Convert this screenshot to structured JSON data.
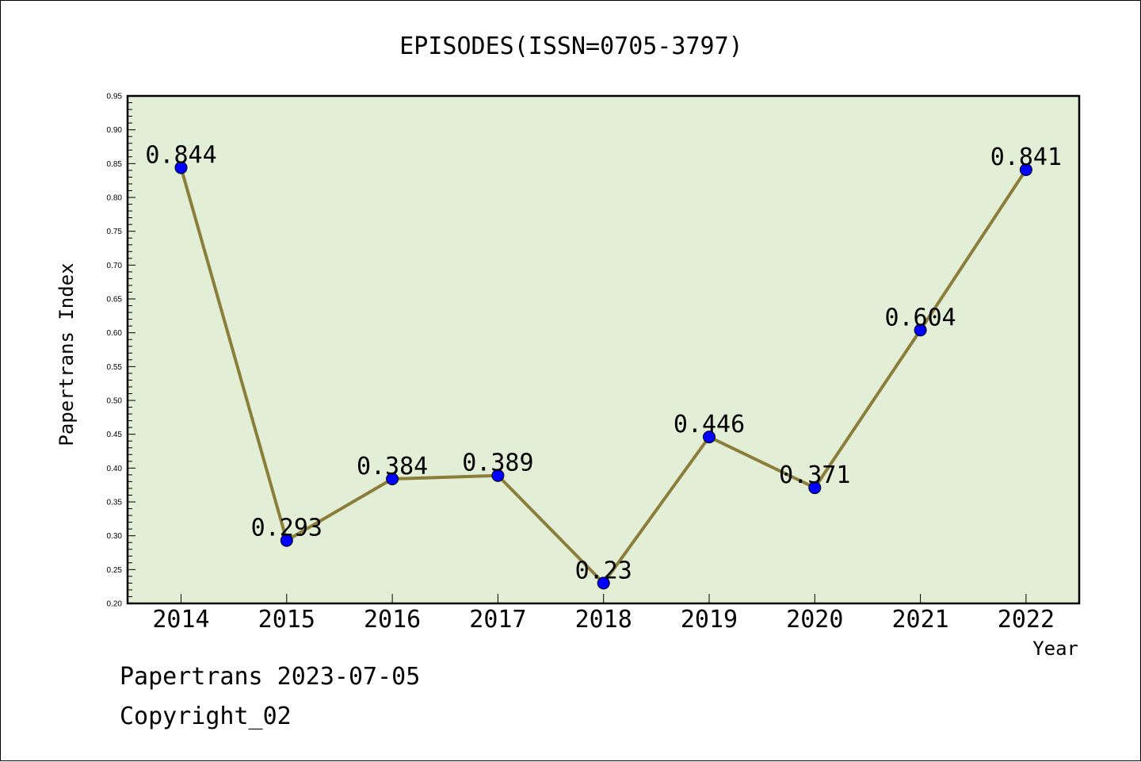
{
  "chart_data": {
    "type": "line",
    "title": "EPISODES(ISSN=0705-3797)",
    "xlabel": "Year",
    "ylabel": "Papertrans Index",
    "categories": [
      "2014",
      "2015",
      "2016",
      "2017",
      "2018",
      "2019",
      "2020",
      "2021",
      "2022"
    ],
    "series": [
      {
        "values": [
          0.844,
          0.293,
          0.384,
          0.389,
          0.23,
          0.446,
          0.371,
          0.604,
          0.841
        ],
        "labels": [
          "0.844",
          "0.293",
          "0.384",
          "0.389",
          "0.23",
          "0.446",
          "0.371",
          "0.604",
          "0.841"
        ]
      }
    ],
    "ylim": [
      0.2,
      0.95
    ],
    "yticks": [
      "0.20",
      "0.25",
      "0.30",
      "0.35",
      "0.40",
      "0.45",
      "0.50",
      "0.55",
      "0.60",
      "0.65",
      "0.70",
      "0.75",
      "0.80",
      "0.85",
      "0.90",
      "0.95"
    ],
    "grid": false,
    "colors": {
      "plot_background": "#e2efd6",
      "line": "#8b7d3a",
      "marker": "#0000ff"
    }
  },
  "footer": {
    "line1": "Papertrans 2023-07-05",
    "line2": "Copyright_02"
  }
}
